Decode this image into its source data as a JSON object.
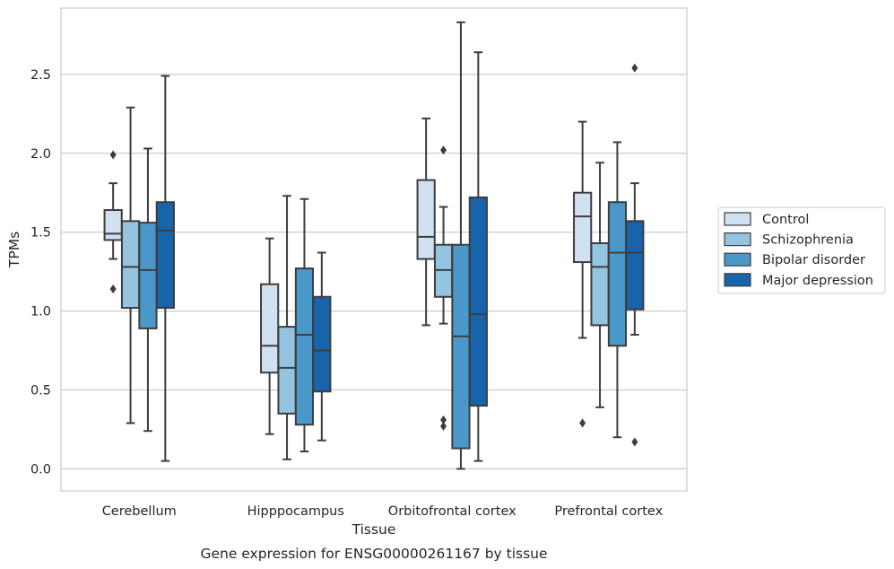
{
  "chart_data": {
    "type": "boxplot",
    "xlabel": "Tissue",
    "ylabel": "TPMs",
    "caption": "Gene expression for ENSG00000261167 by tissue",
    "ylim": [
      -0.14,
      2.92
    ],
    "yticks": [
      0.0,
      0.5,
      1.0,
      1.5,
      2.0,
      2.5
    ],
    "ytick_labels": [
      "0.0",
      "0.5",
      "1.0",
      "1.5",
      "2.0",
      "2.5"
    ],
    "grid": "horizontal",
    "legend_position": "right",
    "categories": [
      "Cerebellum",
      "Hipppocampus",
      "Orbitofrontal cortex",
      "Prefrontal cortex"
    ],
    "series": [
      {
        "name": "Control",
        "color": "#d0e1f2",
        "boxes": [
          {
            "whislo": 1.33,
            "q1": 1.45,
            "med": 1.49,
            "q3": 1.64,
            "whishi": 1.81,
            "fliers": [
              1.99,
              1.14
            ]
          },
          {
            "whislo": 0.22,
            "q1": 0.61,
            "med": 0.78,
            "q3": 1.17,
            "whishi": 1.46,
            "fliers": []
          },
          {
            "whislo": 0.91,
            "q1": 1.33,
            "med": 1.47,
            "q3": 1.83,
            "whishi": 2.22,
            "fliers": []
          },
          {
            "whislo": 0.83,
            "q1": 1.31,
            "med": 1.6,
            "q3": 1.75,
            "whishi": 2.2,
            "fliers": [
              0.29
            ]
          }
        ]
      },
      {
        "name": "Schizophrenia",
        "color": "#94c4df",
        "boxes": [
          {
            "whislo": 0.29,
            "q1": 1.02,
            "med": 1.28,
            "q3": 1.57,
            "whishi": 2.29,
            "fliers": []
          },
          {
            "whislo": 0.06,
            "q1": 0.35,
            "med": 0.64,
            "q3": 0.9,
            "whishi": 1.73,
            "fliers": []
          },
          {
            "whislo": 0.92,
            "q1": 1.09,
            "med": 1.26,
            "q3": 1.42,
            "whishi": 1.66,
            "fliers": [
              2.02,
              0.31,
              0.27
            ]
          },
          {
            "whislo": 0.39,
            "q1": 0.91,
            "med": 1.28,
            "q3": 1.43,
            "whishi": 1.94,
            "fliers": []
          }
        ]
      },
      {
        "name": "Bipolar disorder",
        "color": "#4a98c9",
        "boxes": [
          {
            "whislo": 0.24,
            "q1": 0.89,
            "med": 1.26,
            "q3": 1.56,
            "whishi": 2.03,
            "fliers": []
          },
          {
            "whislo": 0.11,
            "q1": 0.28,
            "med": 0.85,
            "q3": 1.27,
            "whishi": 1.71,
            "fliers": []
          },
          {
            "whislo": 0.0,
            "q1": 0.13,
            "med": 0.84,
            "q3": 1.42,
            "whishi": 2.83,
            "fliers": []
          },
          {
            "whislo": 0.2,
            "q1": 0.78,
            "med": 1.37,
            "q3": 1.69,
            "whishi": 2.07,
            "fliers": []
          }
        ]
      },
      {
        "name": "Major depression",
        "color": "#1764ab",
        "boxes": [
          {
            "whislo": 0.05,
            "q1": 1.02,
            "med": 1.51,
            "q3": 1.69,
            "whishi": 2.49,
            "fliers": []
          },
          {
            "whislo": 0.18,
            "q1": 0.49,
            "med": 0.75,
            "q3": 1.09,
            "whishi": 1.37,
            "fliers": []
          },
          {
            "whislo": 0.05,
            "q1": 0.4,
            "med": 0.98,
            "q3": 1.72,
            "whishi": 2.64,
            "fliers": []
          },
          {
            "whislo": 0.85,
            "q1": 1.01,
            "med": 1.37,
            "q3": 1.57,
            "whishi": 1.81,
            "fliers": [
              2.54,
              0.17
            ]
          }
        ]
      }
    ]
  }
}
